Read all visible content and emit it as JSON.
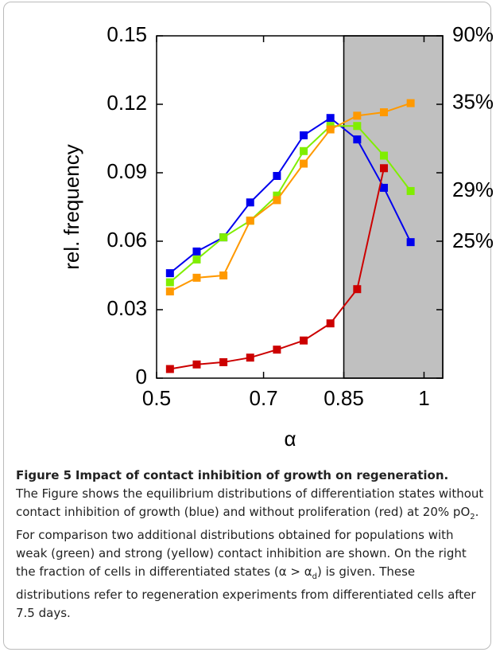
{
  "chart_data": {
    "type": "line",
    "x": [
      0.525,
      0.575,
      0.625,
      0.675,
      0.725,
      0.775,
      0.825,
      0.875,
      0.925,
      0.975
    ],
    "xlim": [
      0.5,
      1.035
    ],
    "xticks": [
      0.5,
      0.7,
      0.85,
      1
    ],
    "ylim": [
      0,
      0.15
    ],
    "yticks": [
      0,
      0.03,
      0.06,
      0.09,
      0.12,
      0.15
    ],
    "xlabel": "α",
    "ylabel": "rel. frequency",
    "shaded_xrange": [
      0.85,
      1.035
    ],
    "shade_color": "#c0c0c0",
    "series": [
      {
        "color": "#0000ee",
        "values": [
          0.046,
          0.0555,
          0.0617,
          0.077,
          0.0886,
          0.1064,
          0.114,
          0.1046,
          0.0834,
          0.0596
        ],
        "end_label": "25%"
      },
      {
        "color": "#80ee00",
        "values": [
          0.042,
          0.052,
          0.0617,
          0.069,
          0.08,
          0.0995,
          0.1105,
          0.1105,
          0.0975,
          0.082
        ],
        "end_label": "29%"
      },
      {
        "color": "#ff9900",
        "values": [
          0.038,
          0.044,
          0.045,
          0.069,
          0.078,
          0.094,
          0.109,
          0.115,
          0.1165,
          0.1205
        ],
        "end_label": "35%"
      },
      {
        "color": "#cc0000",
        "values": [
          0.004,
          0.006,
          0.007,
          0.009,
          0.0125,
          0.0165,
          0.024,
          0.039,
          0.092,
          null
        ],
        "end_label": "90%"
      }
    ]
  },
  "caption": {
    "label": "Figure 5",
    "title": "Impact of contact inhibition of growth on regeneration.",
    "text_parts": [
      "The Figure shows the equilibrium distributions of differentiation states without contact inhibition of growth (blue) and without proliferation (red) at 20% pO",
      "2",
      ". For comparison two additional distributions obtained for populations with weak (green) and strong (yellow) contact inhibition are shown. On the right the fraction of cells in differentiated states (α > α",
      "d",
      ") is given. These distributions refer to regeneration experiments from differentiated cells after 7.5 days."
    ]
  }
}
